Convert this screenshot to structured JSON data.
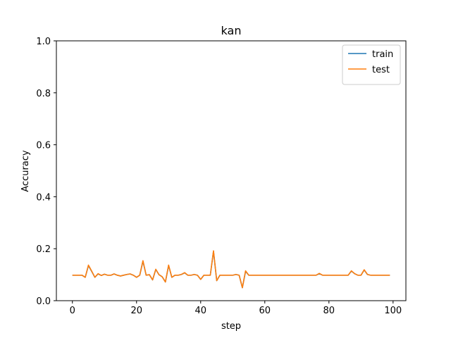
{
  "chart_data": {
    "type": "line",
    "title": "kan",
    "xlabel": "step",
    "ylabel": "Accuracy",
    "xlim": [
      -5,
      104
    ],
    "ylim": [
      0.0,
      1.0
    ],
    "xticks": [
      0,
      20,
      40,
      60,
      80,
      100
    ],
    "yticks": [
      0.0,
      0.2,
      0.4,
      0.6,
      0.8,
      1.0
    ],
    "xtick_labels": [
      "0",
      "20",
      "40",
      "60",
      "80",
      "100"
    ],
    "ytick_labels": [
      "0.0",
      "0.2",
      "0.4",
      "0.6",
      "0.8",
      "1.0"
    ],
    "legend_position": "top-right",
    "grid": false,
    "series": [
      {
        "name": "train",
        "color": "#1f77b4",
        "x": [
          0,
          1,
          2,
          3,
          4,
          5,
          6,
          7,
          8,
          9,
          10,
          11,
          12,
          13,
          14,
          15,
          16,
          17,
          18,
          19,
          20,
          21,
          22,
          23,
          24,
          25,
          26,
          27,
          28,
          29,
          30,
          31,
          32,
          33,
          34,
          35,
          36,
          37,
          38,
          39,
          40,
          41,
          42,
          43,
          44,
          45,
          46,
          47,
          48,
          49,
          50,
          51,
          52,
          53,
          54,
          55,
          56,
          57,
          58,
          59,
          60,
          61,
          62,
          63,
          64,
          65,
          66,
          67,
          68,
          69,
          70,
          71,
          72,
          73,
          74,
          75,
          76,
          77,
          78,
          79,
          80,
          81,
          82,
          83,
          84,
          85,
          86,
          87,
          88,
          89,
          90,
          91,
          92,
          93,
          94,
          95,
          96,
          97,
          98,
          99
        ],
        "y": [
          0.098,
          0.098,
          0.098,
          0.098,
          0.09,
          0.135,
          0.113,
          0.09,
          0.103,
          0.097,
          0.102,
          0.098,
          0.098,
          0.103,
          0.098,
          0.095,
          0.098,
          0.101,
          0.103,
          0.098,
          0.09,
          0.098,
          0.152,
          0.098,
          0.1,
          0.08,
          0.12,
          0.1,
          0.092,
          0.072,
          0.135,
          0.09,
          0.098,
          0.098,
          0.101,
          0.107,
          0.098,
          0.098,
          0.101,
          0.098,
          0.082,
          0.098,
          0.098,
          0.098,
          0.19,
          0.077,
          0.098,
          0.098,
          0.098,
          0.098,
          0.098,
          0.101,
          0.098,
          0.05,
          0.113,
          0.098,
          0.098,
          0.098,
          0.098,
          0.098,
          0.098,
          0.098,
          0.098,
          0.098,
          0.098,
          0.098,
          0.098,
          0.098,
          0.098,
          0.098,
          0.098,
          0.098,
          0.098,
          0.098,
          0.098,
          0.098,
          0.098,
          0.104,
          0.098,
          0.098,
          0.098,
          0.098,
          0.098,
          0.098,
          0.098,
          0.098,
          0.098,
          0.114,
          0.104,
          0.098,
          0.098,
          0.118,
          0.101,
          0.098,
          0.098,
          0.098,
          0.098,
          0.098,
          0.098,
          0.098
        ]
      },
      {
        "name": "test",
        "color": "#ff7f0e",
        "x": [
          0,
          1,
          2,
          3,
          4,
          5,
          6,
          7,
          8,
          9,
          10,
          11,
          12,
          13,
          14,
          15,
          16,
          17,
          18,
          19,
          20,
          21,
          22,
          23,
          24,
          25,
          26,
          27,
          28,
          29,
          30,
          31,
          32,
          33,
          34,
          35,
          36,
          37,
          38,
          39,
          40,
          41,
          42,
          43,
          44,
          45,
          46,
          47,
          48,
          49,
          50,
          51,
          52,
          53,
          54,
          55,
          56,
          57,
          58,
          59,
          60,
          61,
          62,
          63,
          64,
          65,
          66,
          67,
          68,
          69,
          70,
          71,
          72,
          73,
          74,
          75,
          76,
          77,
          78,
          79,
          80,
          81,
          82,
          83,
          84,
          85,
          86,
          87,
          88,
          89,
          90,
          91,
          92,
          93,
          94,
          95,
          96,
          97,
          98,
          99
        ],
        "y": [
          0.098,
          0.098,
          0.098,
          0.098,
          0.09,
          0.137,
          0.114,
          0.09,
          0.104,
          0.097,
          0.102,
          0.098,
          0.098,
          0.103,
          0.098,
          0.095,
          0.098,
          0.101,
          0.103,
          0.098,
          0.09,
          0.098,
          0.154,
          0.098,
          0.1,
          0.08,
          0.121,
          0.1,
          0.092,
          0.072,
          0.137,
          0.09,
          0.098,
          0.098,
          0.101,
          0.108,
          0.098,
          0.098,
          0.101,
          0.098,
          0.082,
          0.098,
          0.098,
          0.098,
          0.192,
          0.077,
          0.098,
          0.098,
          0.098,
          0.098,
          0.098,
          0.101,
          0.098,
          0.05,
          0.115,
          0.098,
          0.098,
          0.098,
          0.098,
          0.098,
          0.098,
          0.098,
          0.098,
          0.098,
          0.098,
          0.098,
          0.098,
          0.098,
          0.098,
          0.098,
          0.098,
          0.098,
          0.098,
          0.098,
          0.098,
          0.098,
          0.098,
          0.105,
          0.098,
          0.098,
          0.098,
          0.098,
          0.098,
          0.098,
          0.098,
          0.098,
          0.098,
          0.115,
          0.104,
          0.098,
          0.098,
          0.119,
          0.101,
          0.098,
          0.098,
          0.098,
          0.098,
          0.098,
          0.098,
          0.098
        ]
      }
    ]
  }
}
